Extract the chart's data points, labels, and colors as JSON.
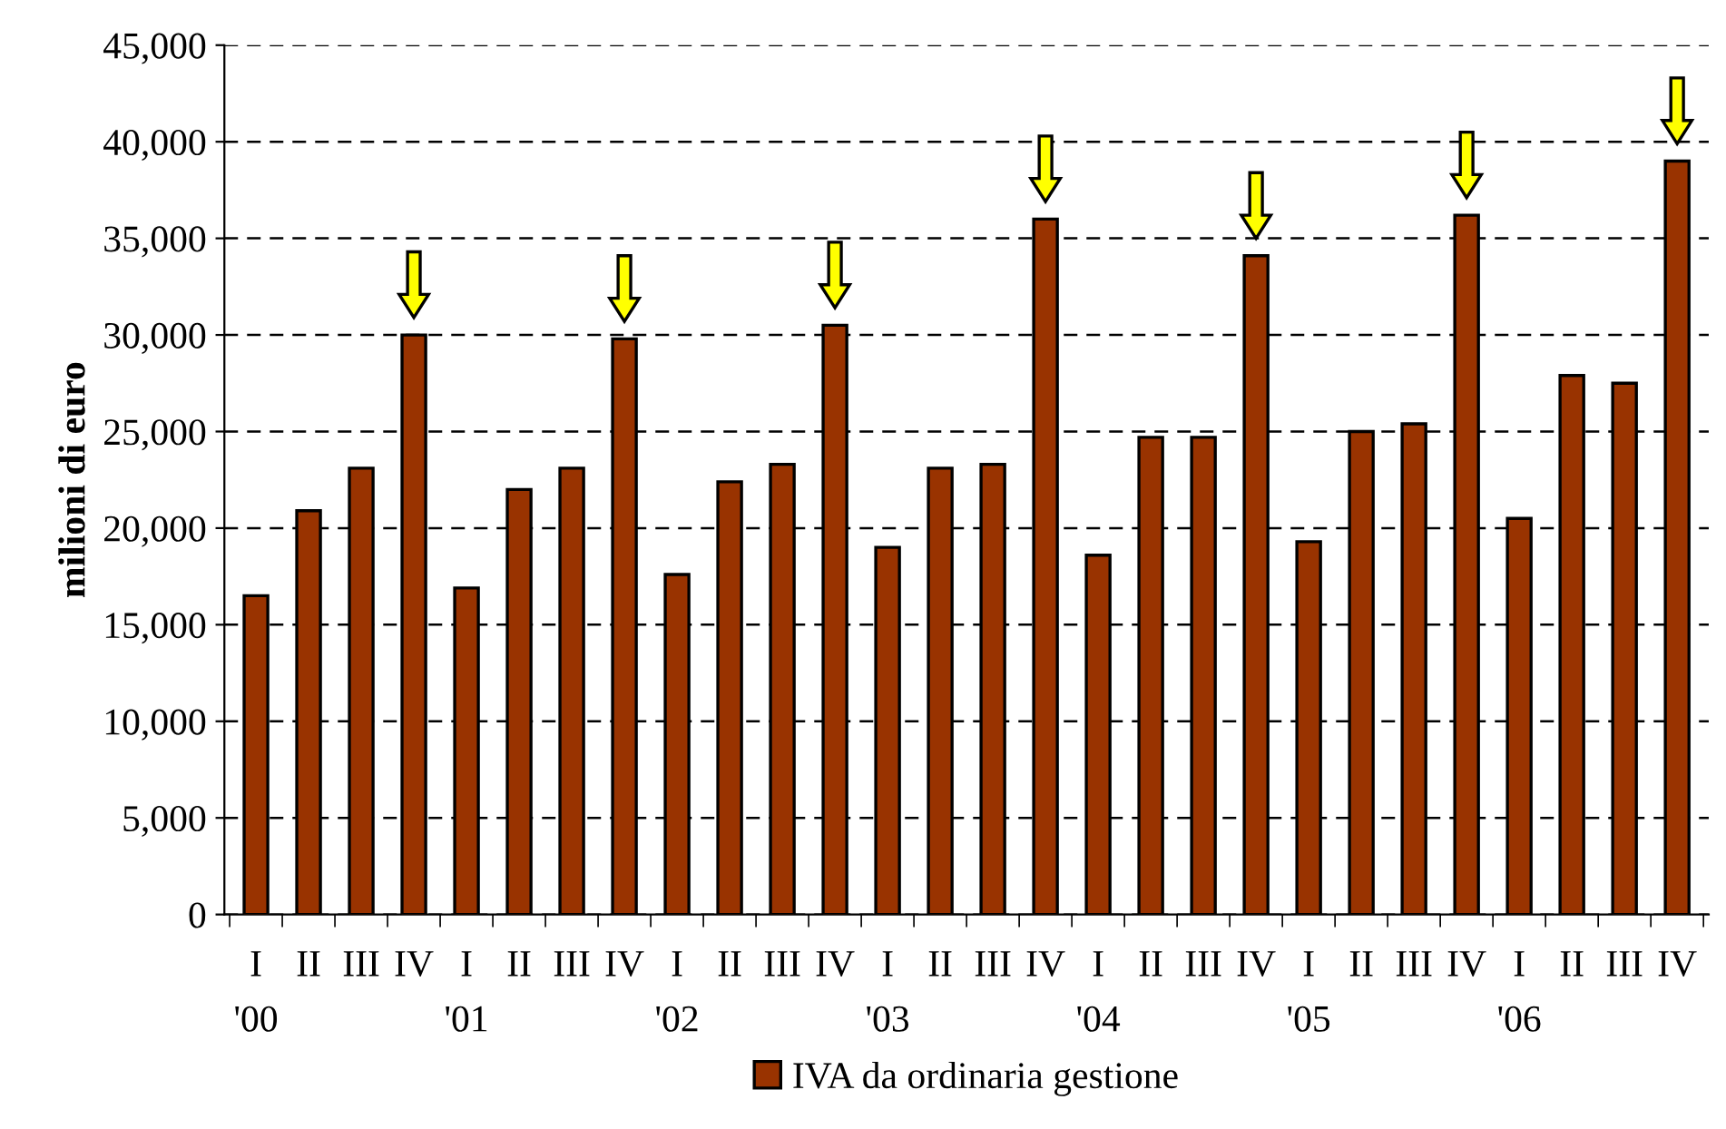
{
  "chart_data": {
    "type": "bar",
    "ylabel": "milioni di euro",
    "categories": [
      "I\n'00",
      "II",
      "III",
      "IV",
      "I\n'01",
      "II",
      "III",
      "IV",
      "I\n'02",
      "II",
      "III",
      "IV",
      "I\n'03",
      "II",
      "III",
      "IV",
      "I\n'04",
      "II",
      "III",
      "IV",
      "I\n'05",
      "II",
      "III",
      "IV",
      "I\n'06",
      "II",
      "III",
      "IV"
    ],
    "series": [
      {
        "name": "IVA da ordinaria gestione",
        "color": "#993300",
        "values": [
          16500,
          20900,
          23100,
          30000,
          16900,
          22000,
          23100,
          29800,
          17600,
          22400,
          23300,
          30500,
          19000,
          23100,
          23300,
          36000,
          18600,
          24700,
          24700,
          34100,
          19300,
          25000,
          25400,
          36200,
          20500,
          27900,
          27500,
          39000
        ]
      }
    ],
    "ylim": [
      0,
      45000
    ],
    "yticks": [
      0,
      {
        "value": 5000,
        "label": "5,000"
      },
      {
        "value": 10000,
        "label": "10,000"
      },
      {
        "value": 15000,
        "label": "15,000"
      },
      {
        "value": 20000,
        "label": "20,000"
      },
      {
        "value": 25000,
        "label": "25,000"
      },
      {
        "value": 30000,
        "label": "30,000"
      },
      {
        "value": 35000,
        "label": "35,000"
      },
      {
        "value": 40000,
        "label": "40,000"
      },
      {
        "value": 45000,
        "label": "45,000"
      }
    ],
    "grid": "y",
    "legend": "bottom"
  }
}
